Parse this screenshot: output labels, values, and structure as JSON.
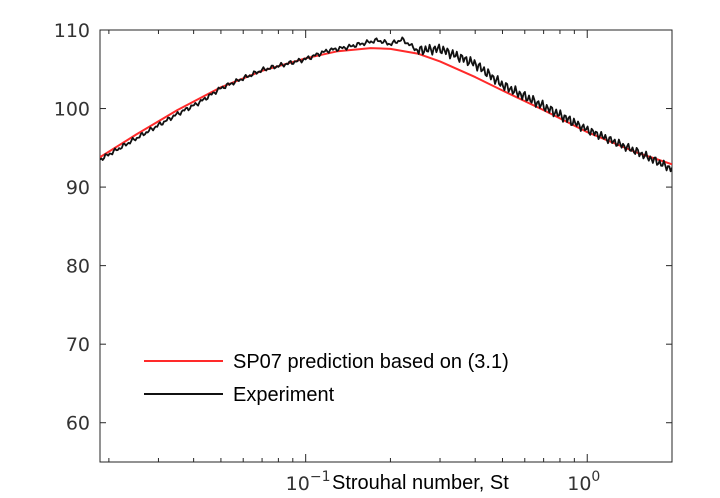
{
  "chart_data": {
    "type": "line",
    "title": "",
    "xlabel": "Strouhal number,  St",
    "ylabel": "",
    "xscale": "log",
    "xlim": [
      0.0186,
      2.0
    ],
    "ylim": [
      55,
      110
    ],
    "yticks": [
      60,
      70,
      80,
      90,
      100,
      110
    ],
    "xticks": [
      {
        "base": "10",
        "exp": "−1",
        "value": 0.1
      },
      {
        "base": "10",
        "exp": "0",
        "value": 1.0
      }
    ],
    "legend_position": "bottom-left",
    "grid": false,
    "series": [
      {
        "name": "SP07 prediction based on (3.1)",
        "color": "#ff2a2a",
        "x": [
          0.0186,
          0.025,
          0.035,
          0.05,
          0.07,
          0.1,
          0.13,
          0.17,
          0.2,
          0.25,
          0.3,
          0.4,
          0.5,
          0.7,
          1.0,
          1.5,
          2.0
        ],
        "y": [
          93.8,
          96.7,
          99.8,
          102.7,
          104.8,
          106.4,
          107.3,
          107.7,
          107.6,
          107.0,
          106.0,
          104.0,
          102.3,
          99.8,
          97.0,
          94.4,
          92.9
        ]
      },
      {
        "name": "Experiment",
        "color": "#111111",
        "x": [
          0.0186,
          0.025,
          0.035,
          0.042,
          0.05,
          0.07,
          0.1,
          0.12,
          0.14,
          0.16,
          0.18,
          0.2,
          0.22,
          0.25,
          0.3,
          0.4,
          0.5,
          0.7,
          1.0,
          1.5,
          2.0
        ],
        "y": [
          93.5,
          96.2,
          99.3,
          100.8,
          102.6,
          104.9,
          106.3,
          107.4,
          107.8,
          108.3,
          108.7,
          108.2,
          108.8,
          107.4,
          107.6,
          105.7,
          103.0,
          100.3,
          97.3,
          94.5,
          92.3
        ]
      }
    ]
  }
}
